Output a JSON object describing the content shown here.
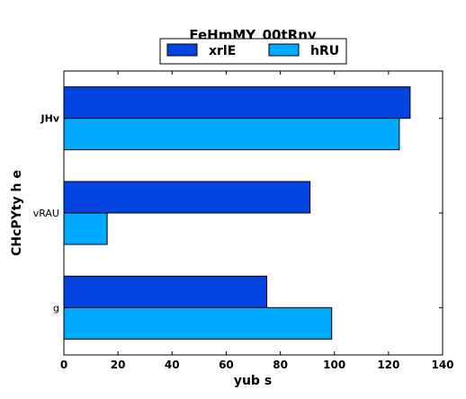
{
  "chart_data": {
    "type": "bar",
    "orientation": "horizontal",
    "title": "FeHmMY_00tRny",
    "xlabel": "yub s",
    "ylabel": "CHcPYty  h e",
    "categories": [
      "g",
      "vRAU",
      "JHv"
    ],
    "series": [
      {
        "name": "xrlE",
        "color": "#0343df",
        "values": [
          75,
          91,
          128
        ]
      },
      {
        "name": "hRU",
        "color": "#00aaff",
        "values": [
          99,
          16,
          124
        ]
      }
    ],
    "xlim": [
      0,
      140
    ],
    "xticks": [
      0,
      20,
      40,
      60,
      80,
      100,
      120,
      140
    ],
    "grid": false,
    "legend_position": "top-center"
  }
}
